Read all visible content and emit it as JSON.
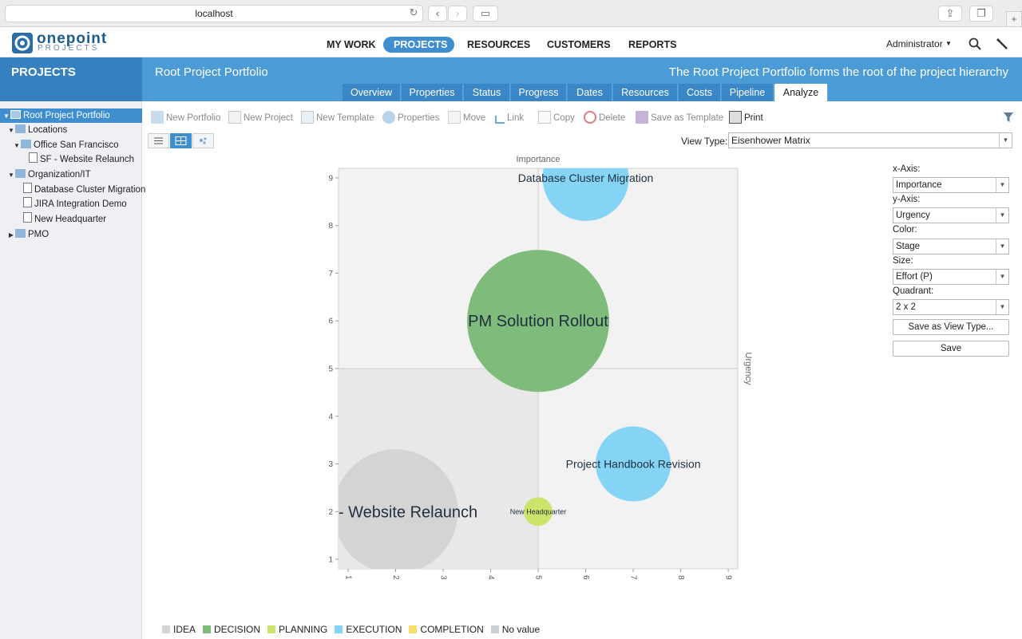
{
  "browser": {
    "url": "localhost"
  },
  "app": {
    "logo_name": "onepoint",
    "logo_sub": "PROJECTS"
  },
  "nav": {
    "items": [
      "MY WORK",
      "PROJECTS",
      "RESOURCES",
      "CUSTOMERS",
      "REPORTS"
    ],
    "active": "PROJECTS",
    "user": "Administrator"
  },
  "band": {
    "module": "PROJECTS",
    "title": "Root Project Portfolio",
    "description": "The Root Project Portfolio forms the root of the project hierarchy"
  },
  "tabs": [
    "Overview",
    "Properties",
    "Status",
    "Progress",
    "Dates",
    "Resources",
    "Costs",
    "Pipeline",
    "Analyze"
  ],
  "active_tab": "Analyze",
  "tree": [
    {
      "label": "Root Project Portfolio"
    },
    {
      "label": "Locations"
    },
    {
      "label": "Office San Francisco"
    },
    {
      "label": "SF - Website Relaunch"
    },
    {
      "label": "Organization/IT"
    },
    {
      "label": "Database Cluster Migration"
    },
    {
      "label": "JIRA Integration Demo"
    },
    {
      "label": "New Headquarter"
    },
    {
      "label": "PMO"
    }
  ],
  "toolbar": [
    "New Portfolio",
    "New Project",
    "New Template",
    "Properties",
    "Move",
    "Link",
    "Copy",
    "Delete",
    "Save as Template",
    "Print"
  ],
  "view_type": {
    "label": "View Type:",
    "value": "Eisenhower Matrix"
  },
  "panel": {
    "x_axis_label": "x-Axis:",
    "x_axis": "Importance",
    "y_axis_label": "y-Axis:",
    "y_axis": "Urgency",
    "color_label": "Color:",
    "color": "Stage",
    "size_label": "Size:",
    "size": "Effort (P)",
    "quadrant_label": "Quadrant:",
    "quadrant": "2 x 2",
    "save_view_type": "Save as View Type...",
    "save": "Save"
  },
  "colors": {
    "IDEA": "#d4d4d4",
    "DECISION": "#7fbb7b",
    "PLANNING": "#cde46a",
    "EXECUTION": "#86d4f5",
    "COMPLETION": "#f5df6e",
    "No value": "#c9d0d6"
  },
  "legend": [
    "IDEA",
    "DECISION",
    "PLANNING",
    "EXECUTION",
    "COMPLETION",
    "No value"
  ],
  "chart_data": {
    "type": "scatter",
    "xlabel": "Importance",
    "ylabel": "Urgency",
    "xlim": [
      0.8,
      9.2
    ],
    "ylim": [
      0.8,
      9.2
    ],
    "xticks": [
      1,
      2,
      3,
      4,
      5,
      6,
      7,
      8,
      9
    ],
    "yticks": [
      1,
      2,
      3,
      4,
      5,
      6,
      7,
      8,
      9
    ],
    "quadrants": "2 x 2",
    "points": [
      {
        "name": "Database Cluster Migration",
        "x": 6,
        "y": 9,
        "stage": "EXECUTION",
        "size": 54
      },
      {
        "name": "PM Solution Rollout",
        "x": 5,
        "y": 6,
        "stage": "DECISION",
        "size": 89
      },
      {
        "name": "Project Handbook Revision",
        "x": 7,
        "y": 3,
        "stage": "EXECUTION",
        "size": 47
      },
      {
        "name": "SF - Website Relaunch",
        "x": 2,
        "y": 2,
        "stage": "IDEA",
        "size": 78
      },
      {
        "name": "New Headquarter",
        "x": 5,
        "y": 2,
        "stage": "PLANNING",
        "size": 18
      }
    ]
  }
}
